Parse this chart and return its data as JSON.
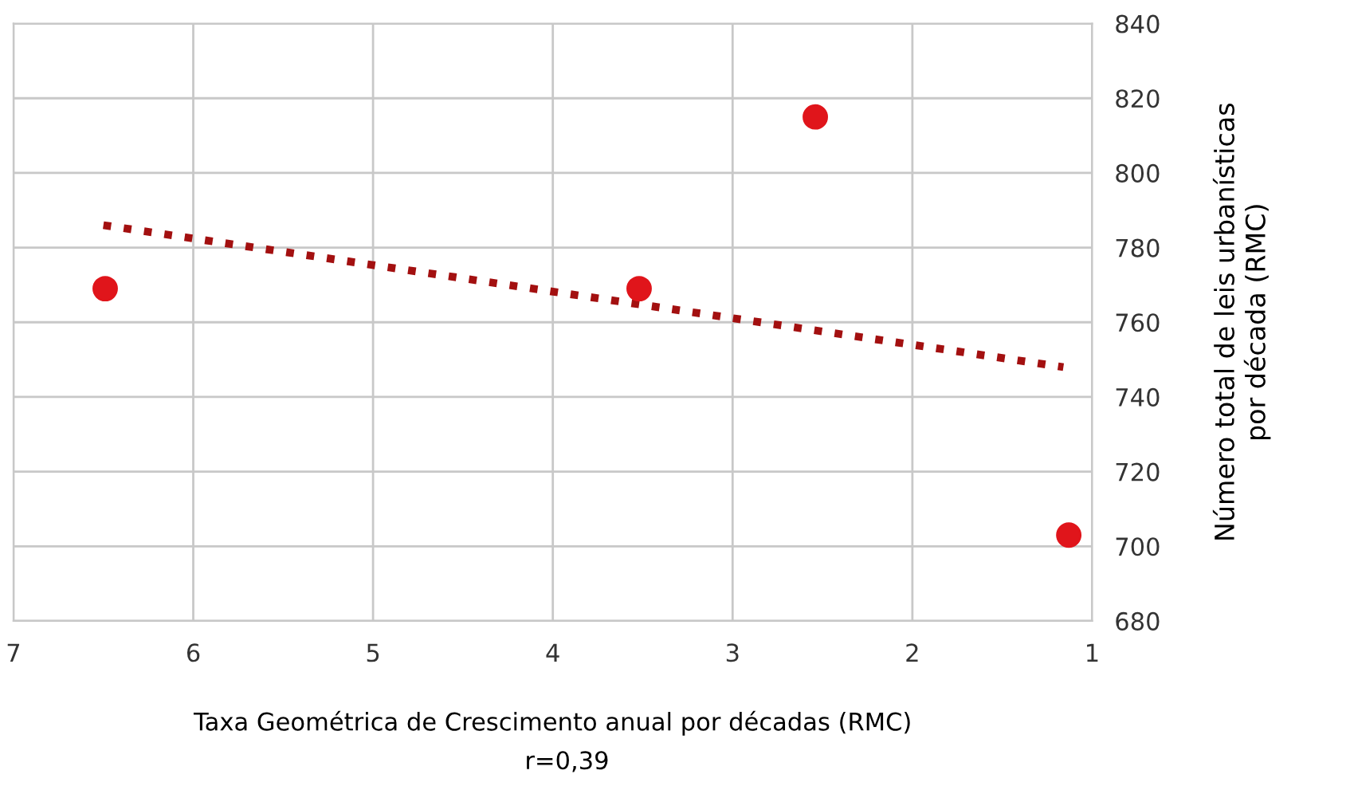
{
  "chart_data": {
    "type": "scatter",
    "xlabel": "Taxa Geométrica de Crescimento anual por décadas (RMC)",
    "ylabel": "Número total de leis urbanísticas\npor década (RMC)",
    "annotations": [
      "r=0,39"
    ],
    "xlim": [
      7,
      1
    ],
    "xticks": [
      7,
      6,
      5,
      4,
      3,
      2,
      1
    ],
    "ylim": [
      680,
      840
    ],
    "yticks": [
      680,
      700,
      720,
      740,
      760,
      780,
      800,
      820,
      840
    ],
    "grid": true,
    "legend": false,
    "series": [
      {
        "color": "#e0151b",
        "marker": "circle",
        "x": [
          6.49,
          3.52,
          2.54,
          1.13
        ],
        "values": [
          769,
          769,
          815,
          703
        ]
      },
      {
        "type": "line",
        "color": "#a31010",
        "line_style": "dotted",
        "x": [
          6.5,
          1.16
        ],
        "values": [
          786,
          748
        ]
      }
    ]
  }
}
